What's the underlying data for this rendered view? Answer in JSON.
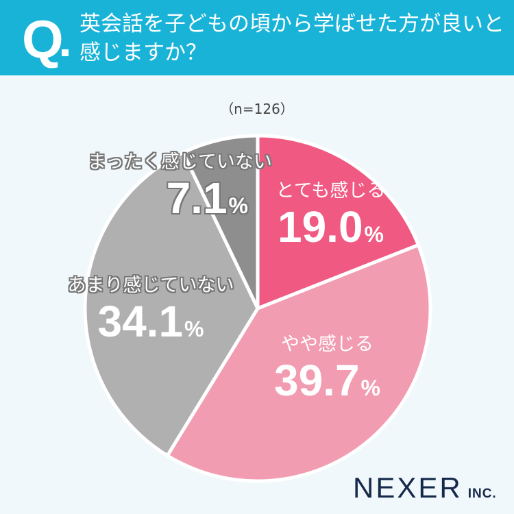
{
  "header": {
    "q_mark": "Q",
    "title": "英会話を子どもの頃から学ばせた方が良いと感じますか？"
  },
  "sample": "（n=126）",
  "logo": {
    "main": "NEXER",
    "suffix": "INC."
  },
  "chart_data": {
    "type": "pie",
    "title": "英会話を子どもの頃から学ばせた方が良いと感じますか？",
    "subtitle": "（n=126）",
    "categories": [
      "とても感じる",
      "やや感じる",
      "あまり感じていない",
      "まったく感じていない"
    ],
    "values": [
      19.0,
      39.7,
      34.1,
      7.1
    ],
    "unit": "%",
    "colors": [
      "#f05a82",
      "#f29cb1",
      "#b1b0b1",
      "#8f8e8e"
    ],
    "start_angle": "12 o'clock, clockwise",
    "legend": "labels inside slices"
  },
  "labels": [
    {
      "cat": "とても感じる",
      "pct": "19.0",
      "unit": "%"
    },
    {
      "cat": "やや感じる",
      "pct": "39.7",
      "unit": "%"
    },
    {
      "cat": "あまり感じていない",
      "pct": "34.1",
      "unit": "%"
    },
    {
      "cat": "まったく感じていない",
      "pct": "7.1",
      "unit": "%"
    }
  ]
}
